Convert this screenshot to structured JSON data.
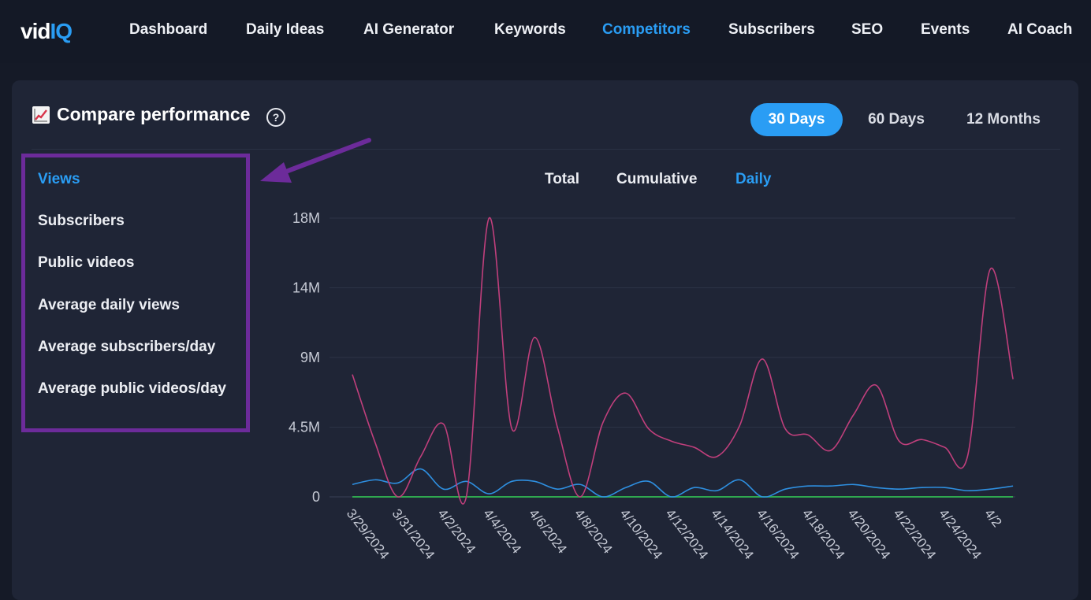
{
  "logo": {
    "text_a": "vid",
    "text_b": "IQ"
  },
  "nav": {
    "items": [
      {
        "label": "Dashboard",
        "active": false
      },
      {
        "label": "Daily Ideas",
        "active": false
      },
      {
        "label": "AI Generator",
        "active": false
      },
      {
        "label": "Keywords",
        "active": false
      },
      {
        "label": "Competitors",
        "active": true
      },
      {
        "label": "Subscribers",
        "active": false
      },
      {
        "label": "SEO",
        "active": false
      },
      {
        "label": "Events",
        "active": false
      },
      {
        "label": "AI Coach",
        "active": false
      }
    ]
  },
  "panel": {
    "title": "Compare performance",
    "help_symbol": "?",
    "ranges": [
      {
        "label": "30 Days",
        "active": true
      },
      {
        "label": "60 Days",
        "active": false
      },
      {
        "label": "12 Months",
        "active": false
      }
    ],
    "metrics": [
      {
        "label": "Views",
        "active": true
      },
      {
        "label": "Subscribers",
        "active": false
      },
      {
        "label": "Public videos",
        "active": false
      },
      {
        "label": "Average daily views",
        "active": false
      },
      {
        "label": "Average subscribers/day",
        "active": false
      },
      {
        "label": "Average public videos/day",
        "active": false
      }
    ],
    "modes": [
      {
        "label": "Total",
        "active": false
      },
      {
        "label": "Cumulative",
        "active": false
      },
      {
        "label": "Daily",
        "active": true
      }
    ]
  },
  "colors": {
    "accent": "#2a9df4",
    "highlight_box": "#6c2b9a",
    "series_pink": "#c03f7c",
    "series_blue": "#2e8fe0",
    "series_green": "#2fa84f"
  },
  "chart_data": {
    "type": "line",
    "y_ticks": [
      "0",
      "4.5M",
      "9M",
      "14M",
      "18M"
    ],
    "y_tick_values": [
      0,
      4.5,
      9,
      13.5,
      18
    ],
    "ylim": [
      0,
      18
    ],
    "unit": "M",
    "x_tick_labels": [
      "3/29/2024",
      "3/31/2024",
      "4/2/2024",
      "4/4/2024",
      "4/6/2024",
      "4/8/2024",
      "4/10/2024",
      "4/12/2024",
      "4/14/2024",
      "4/16/2024",
      "4/18/2024",
      "4/20/2024",
      "4/22/2024",
      "4/24/2024",
      "4/2"
    ],
    "x": [
      "3/29/2024",
      "3/30/2024",
      "3/31/2024",
      "4/1/2024",
      "4/2/2024",
      "4/3/2024",
      "4/4/2024",
      "4/5/2024",
      "4/6/2024",
      "4/7/2024",
      "4/8/2024",
      "4/9/2024",
      "4/10/2024",
      "4/11/2024",
      "4/12/2024",
      "4/13/2024",
      "4/14/2024",
      "4/15/2024",
      "4/16/2024",
      "4/17/2024",
      "4/18/2024",
      "4/19/2024",
      "4/20/2024",
      "4/21/2024",
      "4/22/2024",
      "4/23/2024",
      "4/24/2024",
      "4/25/2024",
      "4/26/2024",
      "4/27/2024"
    ],
    "series": [
      {
        "color_key": "series_pink",
        "values": [
          7.9,
          3.5,
          0,
          2.6,
          4.7,
          0,
          18.0,
          4.4,
          10.3,
          4.5,
          0,
          4.8,
          6.7,
          4.4,
          3.6,
          3.2,
          2.6,
          4.6,
          8.9,
          4.4,
          4.0,
          3.0,
          5.3,
          7.2,
          3.6,
          3.7,
          3.2,
          2.6,
          14.7,
          7.6
        ]
      },
      {
        "color_key": "series_blue",
        "values": [
          0.8,
          1.1,
          0.9,
          1.8,
          0.5,
          1.0,
          0.2,
          1.0,
          1.0,
          0.5,
          0.8,
          0,
          0.6,
          1.0,
          0,
          0.6,
          0.4,
          1.1,
          0,
          0.5,
          0.7,
          0.7,
          0.8,
          0.6,
          0.5,
          0.6,
          0.6,
          0.4,
          0.5,
          0.7
        ]
      },
      {
        "color_key": "series_green",
        "values": [
          0,
          0,
          0,
          0,
          0,
          0,
          0,
          0,
          0,
          0,
          0,
          0,
          0,
          0,
          0,
          0,
          0,
          0,
          0,
          0,
          0,
          0,
          0,
          0,
          0,
          0,
          0,
          0,
          0,
          0
        ]
      }
    ]
  }
}
